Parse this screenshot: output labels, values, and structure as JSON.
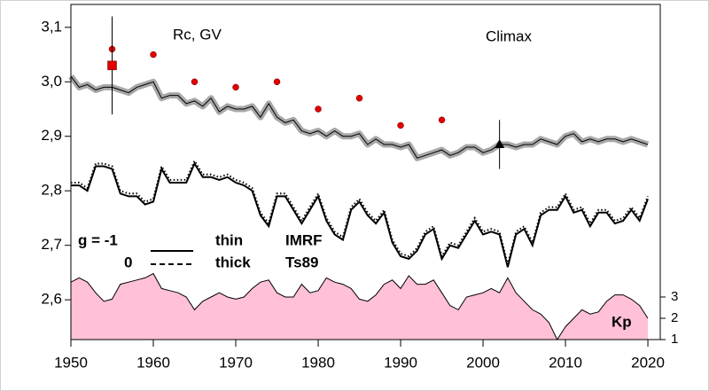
{
  "chart_data": {
    "type": "line",
    "xlim": [
      1950,
      2021.5
    ],
    "xticks": [
      1950,
      1960,
      1970,
      1980,
      1990,
      2000,
      2010,
      2020
    ],
    "ylim": [
      2.527,
      3.142
    ],
    "yticks": [
      {
        "value": 2.6,
        "label": "2,6"
      },
      {
        "value": 2.7,
        "label": "2,7"
      },
      {
        "value": 2.8,
        "label": "2,8"
      },
      {
        "value": 2.9,
        "label": "2,9"
      },
      {
        "value": 3.0,
        "label": "3,0"
      },
      {
        "value": 3.1,
        "label": "3,1"
      }
    ],
    "y2lim": [
      1,
      16.75
    ],
    "y2ticks": [
      1,
      2,
      3
    ],
    "annotations": [
      "Rc, GV",
      "Climax",
      "Kp"
    ],
    "legend": [
      [
        "g  = -1",
        "thin",
        "IMRF"
      ],
      [
        "0",
        "thick",
        "Ts89"
      ]
    ],
    "years": [
      1950,
      1951,
      1952,
      1953,
      1954,
      1955,
      1956,
      1957,
      1958,
      1959,
      1960,
      1961,
      1962,
      1963,
      1964,
      1965,
      1966,
      1967,
      1968,
      1969,
      1970,
      1971,
      1972,
      1973,
      1974,
      1975,
      1976,
      1977,
      1978,
      1979,
      1980,
      1981,
      1982,
      1983,
      1984,
      1985,
      1986,
      1987,
      1988,
      1989,
      1990,
      1991,
      1992,
      1993,
      1994,
      1995,
      1996,
      1997,
      1998,
      1999,
      2000,
      2001,
      2002,
      2003,
      2004,
      2005,
      2006,
      2007,
      2008,
      2009,
      2010,
      2011,
      2012,
      2013,
      2014,
      2015,
      2016,
      2017,
      2018,
      2019,
      2020
    ],
    "series": [
      {
        "style": "area",
        "axis": "y2",
        "color": "#ffc0d8",
        "values": [
          3.7,
          3.9,
          3.7,
          3.2,
          2.8,
          2.9,
          3.6,
          3.7,
          3.8,
          3.9,
          4.1,
          3.4,
          3.3,
          3.2,
          3.0,
          2.4,
          2.8,
          3.0,
          3.2,
          3.0,
          2.9,
          3.0,
          3.4,
          3.7,
          3.8,
          3.2,
          3.0,
          3.0,
          3.6,
          3.2,
          3.3,
          3.9,
          3.7,
          3.6,
          3.4,
          2.9,
          2.8,
          3.1,
          3.6,
          3.8,
          3.4,
          4.0,
          3.6,
          3.6,
          3.8,
          3.2,
          2.6,
          2.4,
          3.0,
          3.1,
          3.2,
          3.4,
          3.2,
          3.9,
          3.2,
          2.8,
          2.4,
          2.2,
          1.8,
          1.0,
          1.6,
          2.0,
          2.4,
          2.2,
          2.3,
          2.8,
          3.1,
          3.1,
          2.9,
          2.6,
          2.0
        ]
      },
      {
        "style": "band",
        "color": "#a8a8a8",
        "values": [
          3.01,
          2.99,
          2.995,
          2.985,
          2.99,
          2.99,
          2.985,
          2.98,
          2.99,
          2.995,
          3.0,
          2.97,
          2.975,
          2.975,
          2.96,
          2.965,
          2.955,
          2.97,
          2.945,
          2.955,
          2.95,
          2.95,
          2.955,
          2.935,
          2.96,
          2.935,
          2.925,
          2.93,
          2.91,
          2.905,
          2.91,
          2.9,
          2.91,
          2.9,
          2.9,
          2.905,
          2.885,
          2.895,
          2.885,
          2.885,
          2.88,
          2.885,
          2.86,
          2.865,
          2.87,
          2.875,
          2.865,
          2.87,
          2.88,
          2.88,
          2.87,
          2.875,
          2.885,
          2.885,
          2.88,
          2.885,
          2.885,
          2.895,
          2.89,
          2.885,
          2.9,
          2.905,
          2.89,
          2.895,
          2.89,
          2.895,
          2.895,
          2.89,
          2.895,
          2.89,
          2.885
        ]
      },
      {
        "style": "dotted",
        "color": "#000000",
        "values": [
          2.815,
          2.815,
          2.805,
          2.85,
          2.85,
          2.845,
          2.8,
          2.795,
          2.795,
          2.78,
          2.785,
          2.845,
          2.82,
          2.82,
          2.82,
          2.855,
          2.83,
          2.83,
          2.825,
          2.83,
          2.82,
          2.815,
          2.805,
          2.76,
          2.74,
          2.795,
          2.795,
          2.77,
          2.745,
          2.77,
          2.795,
          2.75,
          2.725,
          2.715,
          2.77,
          2.785,
          2.76,
          2.745,
          2.765,
          2.71,
          2.685,
          2.68,
          2.695,
          2.725,
          2.735,
          2.68,
          2.705,
          2.7,
          2.725,
          2.75,
          2.725,
          2.73,
          2.725,
          2.665,
          2.725,
          2.735,
          2.705,
          2.76,
          2.77,
          2.77,
          2.795,
          2.765,
          2.77,
          2.74,
          2.765,
          2.765,
          2.745,
          2.75,
          2.77,
          2.75,
          2.79
        ]
      },
      {
        "style": "solid",
        "color": "#000000",
        "values": [
          2.81,
          2.81,
          2.8,
          2.845,
          2.845,
          2.84,
          2.795,
          2.79,
          2.79,
          2.775,
          2.78,
          2.84,
          2.815,
          2.815,
          2.815,
          2.85,
          2.825,
          2.825,
          2.82,
          2.825,
          2.815,
          2.81,
          2.8,
          2.755,
          2.735,
          2.79,
          2.79,
          2.765,
          2.74,
          2.765,
          2.79,
          2.745,
          2.72,
          2.71,
          2.765,
          2.78,
          2.755,
          2.74,
          2.76,
          2.705,
          2.68,
          2.675,
          2.69,
          2.72,
          2.73,
          2.675,
          2.7,
          2.695,
          2.72,
          2.745,
          2.72,
          2.725,
          2.72,
          2.66,
          2.72,
          2.73,
          2.7,
          2.755,
          2.765,
          2.765,
          2.79,
          2.76,
          2.765,
          2.735,
          2.76,
          2.76,
          2.74,
          2.745,
          2.765,
          2.745,
          2.785
        ]
      }
    ],
    "points": [
      {
        "marker": "circle",
        "color": "#e00000",
        "x": [
          1955,
          1960,
          1965,
          1970,
          1975,
          1980,
          1985,
          1990,
          1995
        ],
        "values": [
          3.06,
          3.05,
          3.0,
          2.99,
          3.0,
          2.95,
          2.97,
          2.92,
          2.93
        ]
      },
      {
        "marker": "square",
        "color": "#e00000",
        "x": [
          1955
        ],
        "values": [
          3.03
        ],
        "errors": [
          0.09
        ]
      },
      {
        "marker": "triangle",
        "color": "#000000",
        "x": [
          2002
        ],
        "values": [
          2.885
        ],
        "errors": [
          0.045
        ]
      }
    ]
  }
}
